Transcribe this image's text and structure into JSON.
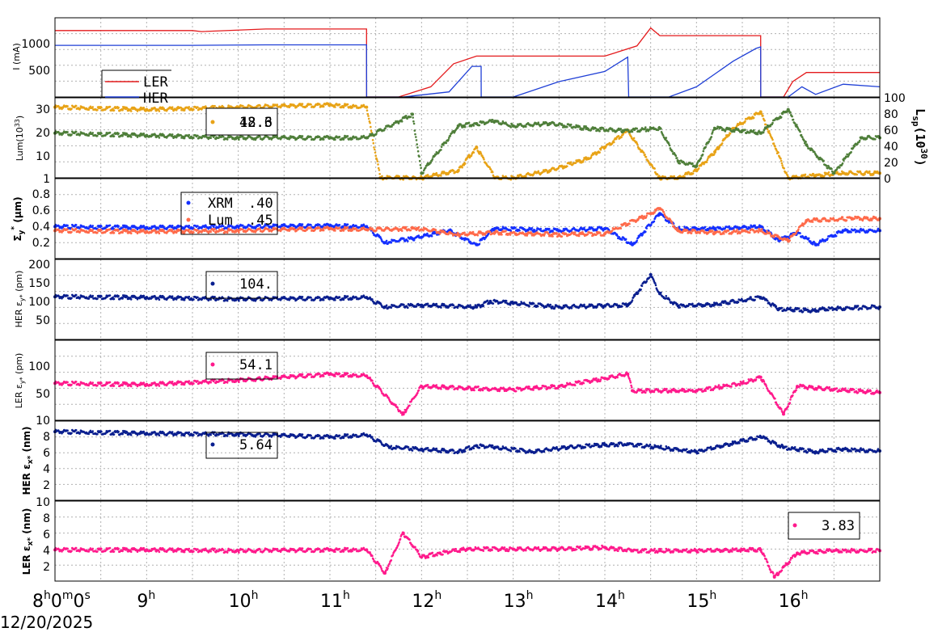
{
  "date_label": "12/20/2025",
  "x_ticks": [
    {
      "hour": 8,
      "label": "8",
      "sup": "h",
      "extra": "0",
      "extra_sup": "m",
      "extra2": "0",
      "extra2_sup": "s"
    },
    {
      "hour": 9,
      "label": "9",
      "sup": "h"
    },
    {
      "hour": 10,
      "label": "10",
      "sup": "h"
    },
    {
      "hour": 11,
      "label": "11",
      "sup": "h"
    },
    {
      "hour": 12,
      "label": "12",
      "sup": "h"
    },
    {
      "hour": 13,
      "label": "13",
      "sup": "h"
    },
    {
      "hour": 14,
      "label": "14",
      "sup": "h"
    },
    {
      "hour": 15,
      "label": "15",
      "sup": "h"
    },
    {
      "hour": 16,
      "label": "16",
      "sup": "h"
    }
  ],
  "colors": {
    "ler": "#e41a1c",
    "her": "#1f3fd6",
    "lum_orange": "#e8a317",
    "lum_green": "#4f7f3a",
    "xrm": "#1530ff",
    "lum_size": "#ff6a4a",
    "her_eps_y": "#0a1f8f",
    "ler_eps_y": "#ff1a8c",
    "her_eps_x": "#0a1f8f",
    "ler_eps_x": "#ff1a8c"
  },
  "panels": {
    "current": {
      "ylabel": "I (mA)",
      "yticks": [
        "500",
        "1000"
      ],
      "legend": [
        "LER",
        "HER"
      ]
    },
    "lum": {
      "ylabel_main": "Lum(10",
      "ylabel_sup": "33",
      "ylabel_end": ")",
      "yticks": [
        "1",
        "10",
        "20",
        "30"
      ],
      "y2label_main": "L",
      "y2label_sub": "sp",
      "y2label_mid": "(10",
      "y2label_sup": "30",
      "y2label_end": ")",
      "y2ticks": [
        "0",
        "20",
        "40",
        "60",
        "80",
        "100"
      ],
      "legend_value_a": "42.6",
      "legend_value_b": "18.3"
    },
    "size": {
      "ylabel_main": "Σ",
      "ylabel_sub": "y",
      "ylabel_sup": "*",
      "ylabel_unit": "(μm)",
      "yticks": [
        "0.2",
        "0.4",
        "0.6",
        "0.8"
      ],
      "legend": [
        {
          "name": "XRM",
          "value": ".40"
        },
        {
          "name": "Lum",
          "value": ".45"
        }
      ]
    },
    "her_eps_y": {
      "ylabel_prefix": "HER ε",
      "ylabel_sub": "y*",
      "ylabel_unit": "(pm)",
      "yticks": [
        "50",
        "100",
        "150",
        "200"
      ],
      "legend_value": "104."
    },
    "ler_eps_y": {
      "ylabel_prefix": "LER ε",
      "ylabel_sub": "y*",
      "ylabel_unit": "(pm)",
      "yticks": [
        "10",
        "50",
        "100"
      ],
      "legend_value": "54.1"
    },
    "her_eps_x": {
      "ylabel_prefix": "HER ε",
      "ylabel_sub": "x*",
      "ylabel_unit": "(nm)",
      "yticks": [
        "2",
        "4",
        "6",
        "8"
      ],
      "legend_value": "5.64"
    },
    "ler_eps_x": {
      "ylabel_prefix": "LER ε",
      "ylabel_sub": "x*",
      "ylabel_unit": "(nm)",
      "yticks": [
        "2",
        "4",
        "6",
        "8",
        "10"
      ],
      "legend_value": "3.83"
    }
  },
  "chart_data": [
    {
      "type": "line",
      "panel": "current",
      "xlabel": "",
      "ylabel": "I (mA)",
      "ylim": [
        0,
        1550
      ],
      "series": [
        {
          "name": "LER",
          "x": [
            8.0,
            9.5,
            9.6,
            10.3,
            11.4,
            11.401,
            11.75,
            12.1,
            12.35,
            12.6,
            12.7,
            13.2,
            14.0,
            14.35,
            14.5,
            14.6,
            15.7,
            15.701,
            15.95,
            16.05,
            16.2,
            17.0
          ],
          "y": [
            1300,
            1300,
            1280,
            1330,
            1330,
            0,
            0,
            200,
            650,
            800,
            800,
            800,
            800,
            1000,
            1350,
            1200,
            1200,
            0,
            0,
            300,
            480,
            480
          ]
        },
        {
          "name": "HER",
          "x": [
            8.0,
            9.5,
            10.3,
            11.4,
            11.401,
            11.8,
            12.3,
            12.55,
            12.65,
            12.651,
            13.0,
            13.5,
            14.0,
            14.25,
            14.26,
            14.7,
            15.0,
            15.4,
            15.65,
            15.7,
            15.701,
            16.0,
            16.15,
            16.3,
            16.6,
            17.0
          ],
          "y": [
            1010,
            1010,
            1020,
            1020,
            0,
            0,
            100,
            600,
            600,
            0,
            0,
            300,
            500,
            780,
            0,
            0,
            200,
            700,
            950,
            980,
            0,
            0,
            200,
            50,
            250,
            200
          ]
        }
      ]
    },
    {
      "type": "scatter",
      "panel": "lum",
      "xlabel": "",
      "ylabel": "Lum(10^33)",
      "ylim": [
        1,
        35
      ],
      "series": [
        {
          "name": "",
          "x": [
            8.0,
            9.0,
            10.0,
            11.0,
            11.4,
            11.55,
            12.0,
            12.4,
            12.6,
            12.8,
            13.0,
            13.4,
            13.8,
            14.0,
            14.25,
            14.6,
            14.8,
            15.0,
            15.2,
            15.4,
            15.7,
            16.0,
            16.3,
            16.6,
            17.0
          ],
          "y": [
            31,
            30,
            31,
            32,
            31,
            1,
            1,
            4,
            14,
            1,
            1,
            4,
            9,
            14,
            21,
            1,
            1,
            4,
            12,
            22,
            29,
            1,
            2,
            3,
            3
          ]
        },
        {
          "name": "",
          "x": [
            8.0,
            9.0,
            10.0,
            11.0,
            11.4,
            11.9,
            12.0,
            12.4,
            12.6,
            12.8,
            13.0,
            13.4,
            13.8,
            14.2,
            14.6,
            14.8,
            15.0,
            15.2,
            15.5,
            15.7,
            16.0,
            16.2,
            16.5,
            16.8,
            17.0
          ],
          "y": [
            20,
            19,
            18,
            18,
            18,
            28,
            3,
            23,
            24,
            25,
            23,
            24,
            22,
            21,
            22,
            8,
            6,
            22,
            21,
            20,
            30,
            15,
            3,
            18,
            18
          ]
        }
      ]
    },
    {
      "type": "scatter",
      "panel": "size",
      "xlabel": "",
      "ylabel": "Σy* (μm)",
      "ylim": [
        0.1,
        0.9
      ],
      "series": [
        {
          "name": "XRM",
          "x": [
            8.0,
            9.0,
            10.0,
            11.0,
            11.4,
            11.6,
            11.9,
            12.3,
            12.6,
            12.8,
            13.5,
            14.0,
            14.3,
            14.6,
            14.8,
            15.2,
            15.7,
            15.9,
            16.1,
            16.3,
            16.6,
            17.0
          ],
          "y": [
            0.42,
            0.41,
            0.42,
            0.43,
            0.42,
            0.26,
            0.3,
            0.38,
            0.24,
            0.4,
            0.38,
            0.4,
            0.24,
            0.55,
            0.4,
            0.4,
            0.42,
            0.28,
            0.36,
            0.24,
            0.38,
            0.38
          ]
        },
        {
          "name": "Lum",
          "x": [
            8.0,
            9.0,
            10.0,
            11.0,
            11.4,
            11.95,
            12.4,
            12.8,
            13.5,
            14.0,
            14.5,
            14.6,
            14.8,
            15.2,
            15.7,
            16.0,
            16.2,
            16.7,
            17.0
          ],
          "y": [
            0.38,
            0.37,
            0.38,
            0.4,
            0.39,
            0.4,
            0.34,
            0.36,
            0.34,
            0.35,
            0.55,
            0.6,
            0.38,
            0.36,
            0.38,
            0.28,
            0.48,
            0.5,
            0.5
          ]
        }
      ]
    },
    {
      "type": "scatter",
      "panel": "her_eps_y",
      "xlabel": "",
      "ylabel": "HER εy* (pm)",
      "ylim": [
        0,
        210
      ],
      "series": [
        {
          "name": "",
          "x": [
            8.0,
            9.0,
            10.0,
            11.0,
            11.4,
            11.6,
            12.0,
            12.6,
            12.75,
            13.0,
            13.5,
            14.0,
            14.25,
            14.5,
            14.6,
            14.8,
            15.2,
            15.7,
            15.9,
            16.3,
            16.35,
            17.0
          ],
          "y": [
            112,
            110,
            106,
            108,
            110,
            85,
            90,
            85,
            100,
            95,
            85,
            88,
            90,
            170,
            120,
            88,
            92,
            110,
            80,
            75,
            80,
            85
          ]
        }
      ]
    },
    {
      "type": "scatter",
      "panel": "ler_eps_y",
      "xlabel": "",
      "ylabel": "LER εy* (pm)",
      "ylim": [
        10,
        140
      ],
      "series": [
        {
          "name": "",
          "x": [
            8.0,
            9.0,
            10.0,
            11.0,
            11.4,
            11.8,
            12.0,
            12.5,
            13.0,
            13.5,
            14.0,
            14.25,
            14.3,
            15.0,
            15.5,
            15.7,
            15.95,
            16.1,
            16.5,
            17.0
          ],
          "y": [
            70,
            68,
            75,
            85,
            82,
            20,
            65,
            62,
            60,
            65,
            78,
            85,
            58,
            58,
            70,
            80,
            20,
            65,
            60,
            55
          ]
        }
      ]
    },
    {
      "type": "scatter",
      "panel": "her_eps_x",
      "xlabel": "",
      "ylabel": "HER εx* (nm)",
      "ylim": [
        0,
        9
      ],
      "series": [
        {
          "name": "",
          "x": [
            8.0,
            9.0,
            10.0,
            11.0,
            11.4,
            11.65,
            12.0,
            12.4,
            12.6,
            12.8,
            13.2,
            13.6,
            14.0,
            14.25,
            14.6,
            15.0,
            15.4,
            15.7,
            15.95,
            16.3,
            16.6,
            17.0
          ],
          "y": [
            7.8,
            7.6,
            7.5,
            7.2,
            7.4,
            6.0,
            5.8,
            5.5,
            6.2,
            6.0,
            5.5,
            6.0,
            6.3,
            6.4,
            6.0,
            5.5,
            6.5,
            7.2,
            6.0,
            5.5,
            5.8,
            5.6
          ]
        }
      ]
    },
    {
      "type": "scatter",
      "panel": "ler_eps_x",
      "xlabel": "",
      "ylabel": "LER εx* (nm)",
      "ylim": [
        0,
        10
      ],
      "series": [
        {
          "name": "",
          "x": [
            8.0,
            9.0,
            10.0,
            11.0,
            11.4,
            11.6,
            11.8,
            12.0,
            12.2,
            12.5,
            13.0,
            13.5,
            14.0,
            14.3,
            14.6,
            15.0,
            15.5,
            15.7,
            15.85,
            16.1,
            16.5,
            17.0
          ],
          "y": [
            3.9,
            3.9,
            3.8,
            3.9,
            3.9,
            1.0,
            6.0,
            3.0,
            3.5,
            4.0,
            4.0,
            4.0,
            4.2,
            3.8,
            3.8,
            3.8,
            3.9,
            3.9,
            0.5,
            3.5,
            3.8,
            3.8
          ]
        }
      ]
    }
  ]
}
